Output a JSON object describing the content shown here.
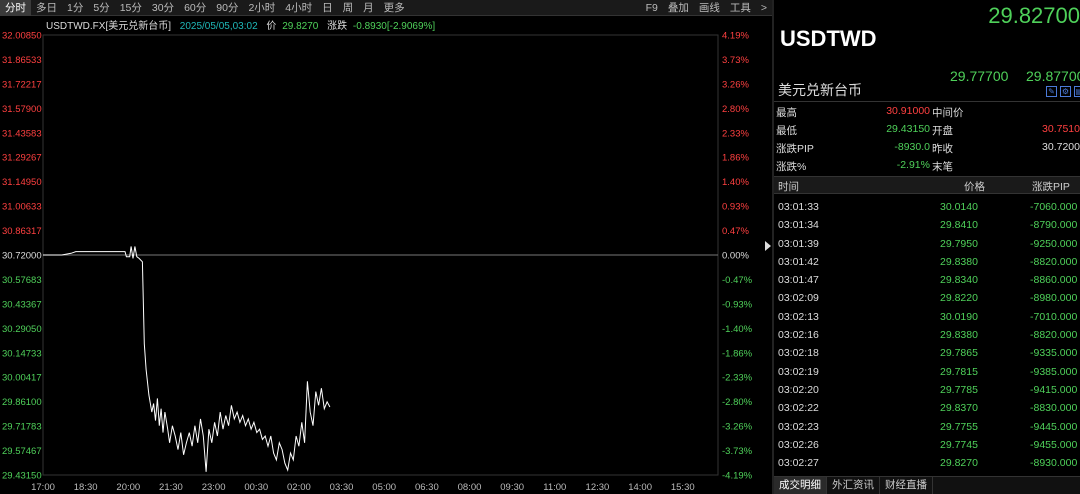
{
  "toolbar": {
    "periods": [
      "分时",
      "多日",
      "1分",
      "5分",
      "15分",
      "30分",
      "60分",
      "90分",
      "2小时",
      "4小时",
      "日",
      "周",
      "月",
      "更多"
    ],
    "active": "分时",
    "tools": [
      "F9",
      "叠加",
      "画线",
      "工具",
      ">"
    ]
  },
  "info": {
    "symbol": "USDTWD.FX[美元兑新台币]",
    "datetime": "2025/05/05,03:02",
    "price_label": "价",
    "price": "29.8270",
    "change_label": "涨跌",
    "change": "-0.8930[-2.9069%]"
  },
  "chart_data": {
    "type": "line",
    "prev_close": 30.72,
    "y_ticks": [
      "32.00850",
      "31.86533",
      "31.72217",
      "31.57900",
      "31.43583",
      "31.29267",
      "31.14950",
      "31.00633",
      "30.86317",
      "30.72000",
      "30.57683",
      "30.43367",
      "30.29050",
      "30.14733",
      "30.00417",
      "29.86100",
      "29.71783",
      "29.57467",
      "29.43150"
    ],
    "pct_ticks": [
      "4.19%",
      "3.73%",
      "3.26%",
      "2.80%",
      "2.33%",
      "1.86%",
      "1.40%",
      "0.93%",
      "0.47%",
      "0.00%",
      "-0.47%",
      "-0.93%",
      "-1.40%",
      "-1.86%",
      "-2.33%",
      "-2.80%",
      "-3.26%",
      "-3.73%",
      "-4.19%"
    ],
    "x_ticks": [
      "17:00",
      "18:30",
      "20:00",
      "21:30",
      "23:00",
      "00:30",
      "02:00",
      "03:30",
      "05:00",
      "06:30",
      "08:00",
      "09:30",
      "11:00",
      "12:30",
      "14:00",
      "15:30"
    ],
    "ylim": [
      29.4315,
      32.0085
    ],
    "x_range_minutes": [
      0,
      1440
    ],
    "series": [
      {
        "x": [
          0,
          40,
          60,
          70,
          100,
          110,
          175,
          178,
          185,
          188,
          192,
          196,
          200,
          205,
          212,
          216,
          220,
          226,
          232,
          236,
          240,
          244,
          248,
          252,
          256,
          260,
          266,
          270,
          276,
          282,
          288,
          294,
          300,
          306,
          312,
          318,
          324,
          330,
          336,
          342,
          348,
          354,
          360,
          366,
          372,
          378,
          384,
          390,
          396,
          402,
          408,
          414,
          420,
          426,
          432,
          438,
          444,
          450,
          456,
          462,
          468,
          474,
          480,
          486,
          492,
          498,
          504,
          510,
          516,
          522,
          528,
          534,
          540,
          546,
          552,
          558,
          564,
          570,
          576,
          582,
          588,
          594,
          600,
          606,
          612
        ],
        "y": [
          30.72,
          30.72,
          30.73,
          30.74,
          30.74,
          30.74,
          30.74,
          30.71,
          30.71,
          30.77,
          30.7,
          30.77,
          30.71,
          30.7,
          30.68,
          30.2,
          30.05,
          29.9,
          29.8,
          29.85,
          29.75,
          29.88,
          29.72,
          29.82,
          29.68,
          29.8,
          29.7,
          29.62,
          29.72,
          29.66,
          29.58,
          29.68,
          29.55,
          29.62,
          29.68,
          29.6,
          29.72,
          29.62,
          29.76,
          29.66,
          29.45,
          29.7,
          29.62,
          29.74,
          29.66,
          29.8,
          29.7,
          29.78,
          29.72,
          29.84,
          29.76,
          29.8,
          29.74,
          29.78,
          29.72,
          29.76,
          29.7,
          29.74,
          29.68,
          29.7,
          29.64,
          29.66,
          29.6,
          29.66,
          29.56,
          29.52,
          29.62,
          29.58,
          29.5,
          29.46,
          29.56,
          29.52,
          29.66,
          29.6,
          29.74,
          29.62,
          29.98,
          29.8,
          29.72,
          29.92,
          29.84,
          29.94,
          29.82,
          29.86,
          29.83
        ]
      }
    ]
  },
  "quote": {
    "last": "29.82700",
    "symbol": "USDTWD",
    "bid": "29.77700",
    "ask": "29.87700",
    "name": "美元兑新台币"
  },
  "stats": [
    {
      "l1": "最高",
      "v1": "30.91000",
      "c1": "#ff4040",
      "l2": "中间价",
      "v2": "",
      "c2": "#ddd"
    },
    {
      "l1": "最低",
      "v1": "29.43150",
      "c1": "#4fd15a",
      "l2": "开盘",
      "v2": "30.7510",
      "c2": "#ff4040"
    },
    {
      "l1": "涨跌PIP",
      "v1": "-8930.0",
      "c1": "#4fd15a",
      "l2": "昨收",
      "v2": "30.7200",
      "c2": "#ddd"
    },
    {
      "l1": "涨跌%",
      "v1": "-2.91%",
      "c1": "#4fd15a",
      "l2": "末笔",
      "v2": "",
      "c2": "#ddd"
    }
  ],
  "ticks_header": {
    "time": "时间",
    "price": "价格",
    "change": "涨跌PIP"
  },
  "ticks": [
    {
      "time": "03:01:33",
      "price": "30.0140",
      "change": "-7060.000"
    },
    {
      "time": "03:01:34",
      "price": "29.8410",
      "change": "-8790.000"
    },
    {
      "time": "03:01:39",
      "price": "29.7950",
      "change": "-9250.000"
    },
    {
      "time": "03:01:42",
      "price": "29.8380",
      "change": "-8820.000"
    },
    {
      "time": "03:01:47",
      "price": "29.8340",
      "change": "-8860.000"
    },
    {
      "time": "03:02:09",
      "price": "29.8220",
      "change": "-8980.000"
    },
    {
      "time": "03:02:13",
      "price": "30.0190",
      "change": "-7010.000"
    },
    {
      "time": "03:02:16",
      "price": "29.8380",
      "change": "-8820.000"
    },
    {
      "time": "03:02:18",
      "price": "29.7865",
      "change": "-9335.000"
    },
    {
      "time": "03:02:19",
      "price": "29.7815",
      "change": "-9385.000"
    },
    {
      "time": "03:02:20",
      "price": "29.7785",
      "change": "-9415.000"
    },
    {
      "time": "03:02:22",
      "price": "29.8370",
      "change": "-8830.000"
    },
    {
      "time": "03:02:23",
      "price": "29.7755",
      "change": "-9445.000"
    },
    {
      "time": "03:02:26",
      "price": "29.7745",
      "change": "-9455.000"
    },
    {
      "time": "03:02:27",
      "price": "29.8270",
      "change": "-8930.000"
    }
  ],
  "bottom_tabs": [
    "成交明细",
    "外汇资讯",
    "财经直播"
  ],
  "colors": {
    "up": "#ff4040",
    "down": "#4fd15a",
    "line": "#ffffff",
    "accent": "#1fb8b8"
  }
}
